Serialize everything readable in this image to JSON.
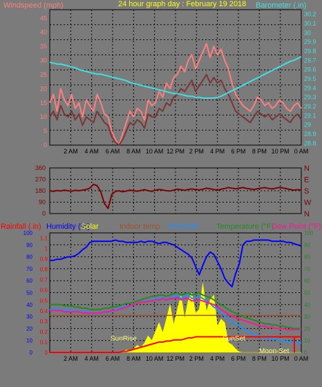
{
  "colors": {
    "bg": "#7b7b7b",
    "grid": "#000000",
    "wind_gust": "#ff7f7f",
    "wind_avg": "#7a3535",
    "barometer": "#40e0e0",
    "wind_dir": "#800000",
    "rain": "#ff0000",
    "humidity": "#0000ff",
    "solar": "#ffff00",
    "indoor": "#a0522d",
    "windchill": "#1e90ff",
    "temperature": "#228b22",
    "dewpoint": "#ff1493",
    "sun_label": "#ffff80"
  },
  "chart_data": [
    {
      "type": "line",
      "title": "24 hour graph day : February 19 2018",
      "ylabel_left": "Windspeed (mph)",
      "ylabel_right": "Barometer (.in)",
      "x_ticks": [
        "2 AM",
        "4 AM",
        "6 AM",
        "8 AM",
        "10 AM",
        "12 PM",
        "2 PM",
        "4 PM",
        "6 PM",
        "8 PM",
        "10 PM",
        "0 AM"
      ],
      "y_left_ticks": [
        "0",
        "5",
        "10",
        "15",
        "20",
        "25",
        "30",
        "35",
        "40",
        "45"
      ],
      "y_right_ticks": [
        "28.8",
        "28.9",
        "29",
        "29.1",
        "29.2",
        "29.3",
        "29.4",
        "29.5",
        "29.6",
        "29.7",
        "29.8",
        "29.9",
        "30",
        "30.1",
        "30.2"
      ],
      "ylim_left": [
        0,
        48
      ],
      "ylim_right": [
        28.78,
        30.25
      ],
      "series": [
        {
          "key": "gust",
          "values": [
            15,
            18,
            12,
            20,
            16,
            14,
            18,
            13,
            15,
            10,
            16,
            14,
            12,
            18,
            15,
            11,
            10,
            5,
            2,
            0,
            4,
            8,
            12,
            10,
            13,
            12,
            9,
            16,
            14,
            15,
            19,
            17,
            22,
            20,
            24,
            25,
            28,
            26,
            30,
            32,
            27,
            30,
            33,
            36,
            31,
            35,
            32,
            34,
            30,
            27,
            22,
            18,
            16,
            14,
            13,
            12,
            14,
            17,
            16,
            14,
            15,
            13,
            14,
            16,
            15,
            13,
            12,
            14,
            15,
            13
          ]
        },
        {
          "key": "avg",
          "values": [
            10,
            12,
            9,
            14,
            11,
            10,
            12,
            9,
            11,
            7,
            10,
            9,
            8,
            12,
            10,
            8,
            7,
            3,
            1,
            0,
            2,
            5,
            8,
            7,
            9,
            8,
            6,
            11,
            10,
            10,
            13,
            12,
            15,
            14,
            17,
            18,
            20,
            19,
            21,
            23,
            19,
            21,
            23,
            25,
            22,
            24,
            22,
            23,
            20,
            18,
            15,
            12,
            11,
            10,
            9,
            8,
            10,
            12,
            11,
            10,
            11,
            9,
            10,
            11,
            10,
            9,
            8,
            10,
            11,
            9
          ]
        },
        {
          "key": "barometer",
          "values": [
            29.68,
            29.67,
            29.66,
            29.66,
            29.65,
            29.64,
            29.63,
            29.62,
            29.6,
            29.59,
            29.58,
            29.57,
            29.56,
            29.55,
            29.55,
            29.54,
            29.53,
            29.52,
            29.51,
            29.5,
            29.49,
            29.48,
            29.46,
            29.45,
            29.44,
            29.43,
            29.42,
            29.41,
            29.4,
            29.39,
            29.38,
            29.37,
            29.36,
            29.35,
            29.34,
            29.34,
            29.33,
            29.32,
            29.31,
            29.31,
            29.3,
            29.3,
            29.29,
            29.29,
            29.29,
            29.29,
            29.3,
            29.31,
            29.33,
            29.35,
            29.37,
            29.39,
            29.41,
            29.43,
            29.45,
            29.47,
            29.49,
            29.51,
            29.53,
            29.55,
            29.57,
            29.59,
            29.61,
            29.63,
            29.65,
            29.67,
            29.69,
            29.7,
            29.72,
            29.74
          ]
        }
      ]
    },
    {
      "type": "line",
      "x_ticks": [
        "2 AM",
        "4 AM",
        "6 AM",
        "8 AM",
        "10 AM",
        "12 PM",
        "2 PM",
        "4 PM",
        "6 PM",
        "8 PM",
        "10 PM",
        "0 AM"
      ],
      "y_ticks": [
        "0",
        "90",
        "180",
        "270",
        "360"
      ],
      "y_right_labels": [
        "N",
        "W",
        "S",
        "E",
        "N"
      ],
      "ylim": [
        0,
        360
      ],
      "series": [
        {
          "key": "direction",
          "values": [
            180,
            175,
            182,
            178,
            185,
            180,
            176,
            183,
            180,
            185,
            190,
            200,
            230,
            220,
            170,
            80,
            40,
            150,
            175,
            180,
            172,
            178,
            185,
            180,
            176,
            182,
            188,
            180,
            175,
            185,
            190,
            186,
            180,
            178,
            185,
            192,
            188,
            184,
            190,
            195,
            190,
            186,
            192,
            200,
            196,
            190,
            185,
            192,
            198,
            205,
            200,
            196,
            200,
            205,
            198,
            194,
            190,
            196,
            200,
            205,
            198,
            194,
            200,
            206,
            202,
            196,
            190,
            185,
            188,
            186
          ]
        }
      ]
    },
    {
      "type": "line",
      "legend": [
        "Rainfall (.in)",
        "Humidity (%)",
        "Solar",
        "Indoor temp",
        "Windchill",
        "Temperature (°F)",
        "Dew Point (°F)"
      ],
      "x_ticks": [
        "2 AM",
        "4 AM",
        "6 AM",
        "8 AM",
        "10 AM",
        "12 PM",
        "2 PM",
        "4 PM",
        "6 PM",
        "8 PM",
        "10 PM",
        "0 AM"
      ],
      "y_left_ticks": [
        "0",
        "10",
        "20",
        "30",
        "40",
        "50",
        "60",
        "70",
        "80",
        "90",
        "100"
      ],
      "y_mid_ticks": [
        "0",
        "0.1",
        "0.2",
        "0.3",
        "0.4",
        "0.5",
        "0.6",
        "0.7",
        "0.8",
        "0.9",
        "1",
        "1.1"
      ],
      "y_right_ticks": [
        "0",
        "10",
        "20",
        "30",
        "40",
        "50",
        "60",
        "70",
        "80",
        "90",
        "100"
      ],
      "ylim": [
        0,
        100
      ],
      "annotations": [
        "SunRise",
        "SunSet",
        "Moon-Set"
      ],
      "series": [
        {
          "key": "humidity",
          "values": [
            77,
            77,
            78,
            78,
            79,
            80,
            80,
            81,
            83,
            86,
            88,
            92,
            93,
            93,
            93,
            93,
            93,
            93,
            94,
            93,
            93,
            92,
            92,
            92,
            92,
            93,
            92,
            93,
            93,
            92,
            91,
            92,
            92,
            91,
            90,
            88,
            86,
            84,
            82,
            79,
            72,
            65,
            73,
            80,
            84,
            82,
            76,
            70,
            62,
            58,
            55,
            66,
            74,
            90,
            93,
            93,
            94,
            94,
            94,
            94,
            94,
            93,
            93,
            93,
            93,
            92,
            92,
            91,
            90,
            89
          ]
        },
        {
          "key": "temperature",
          "values": [
            40,
            40,
            40,
            40,
            39,
            39,
            39,
            38,
            38,
            37,
            37,
            36,
            36,
            36,
            36,
            37,
            37,
            38,
            38,
            39,
            40,
            41,
            41,
            42,
            43,
            44,
            45,
            46,
            47,
            47,
            48,
            48,
            47,
            48,
            49,
            50,
            48,
            49,
            50,
            48,
            49,
            50,
            48,
            47,
            46,
            44,
            42,
            40,
            38,
            36,
            34,
            33,
            31,
            30,
            29,
            28,
            27,
            26,
            25,
            24,
            24,
            23,
            23,
            22,
            22,
            21,
            21,
            20,
            20,
            20
          ]
        },
        {
          "key": "dewpoint",
          "values": [
            35,
            35,
            35,
            35,
            34,
            34,
            34,
            34,
            34,
            33,
            33,
            33,
            33,
            33,
            33,
            34,
            34,
            35,
            35,
            36,
            37,
            38,
            39,
            40,
            41,
            42,
            42,
            43,
            43,
            44,
            44,
            45,
            44,
            45,
            45,
            46,
            44,
            45,
            45,
            43,
            44,
            44,
            43,
            42,
            41,
            40,
            38,
            36,
            34,
            32,
            30,
            29,
            28,
            27,
            26,
            25,
            24,
            23,
            22,
            22,
            21,
            21,
            20,
            20,
            20,
            19,
            19,
            19,
            19,
            19
          ]
        },
        {
          "key": "windchill",
          "values": [
            36,
            36,
            37,
            35,
            36,
            35,
            36,
            34,
            35,
            33,
            35,
            33,
            32,
            33,
            32,
            34,
            33,
            35,
            36,
            37,
            38,
            39,
            38,
            40,
            41,
            42,
            43,
            43,
            44,
            45,
            45,
            46,
            44,
            46,
            47,
            48,
            45,
            47,
            48,
            45,
            46,
            47,
            45,
            43,
            41,
            38,
            36,
            33,
            31,
            28,
            25,
            24,
            22,
            20,
            18,
            16,
            15,
            14,
            13,
            12,
            12,
            11,
            11,
            10,
            10,
            9,
            9,
            9,
            8,
            8
          ]
        },
        {
          "key": "indoor",
          "values": [
            31,
            31,
            31,
            31,
            31,
            31,
            31,
            31,
            31,
            31,
            31,
            31,
            31,
            31,
            31,
            31,
            31,
            31,
            31,
            31,
            31,
            31,
            31,
            31,
            31,
            31,
            31,
            31,
            31,
            31,
            31,
            31,
            31,
            31,
            31,
            31,
            31,
            31,
            31,
            31,
            31,
            31,
            31,
            31,
            31,
            31,
            31,
            31,
            31,
            31,
            31,
            31,
            31,
            31,
            31,
            31,
            31,
            31,
            31,
            31,
            31,
            31,
            31,
            31,
            31,
            31,
            31,
            31,
            31,
            31
          ]
        },
        {
          "key": "solar",
          "values": [
            0,
            0,
            0,
            0,
            0,
            0,
            0,
            0,
            0,
            0,
            0,
            0,
            0,
            0,
            0,
            0,
            0,
            0,
            0,
            0,
            1,
            2,
            3,
            4,
            6,
            8,
            10,
            14,
            18,
            22,
            25,
            30,
            35,
            40,
            42,
            45,
            48,
            52,
            55,
            50,
            60,
            45,
            58,
            62,
            55,
            48,
            40,
            35,
            25,
            15,
            8,
            3,
            1,
            0,
            0,
            0,
            0,
            0,
            0,
            0,
            0,
            0,
            0,
            0,
            0,
            0,
            0,
            0,
            0,
            0
          ]
        },
        {
          "key": "rain",
          "values": [
            0,
            0,
            0,
            0,
            0,
            0,
            0,
            0,
            0,
            0,
            0,
            0,
            0,
            0,
            0,
            0,
            0,
            0,
            0,
            0,
            0.01,
            0.01,
            0.02,
            0.03,
            0.04,
            0.05,
            0.06,
            0.07,
            0.08,
            0.09,
            0.1,
            0.1,
            0.11,
            0.11,
            0.12,
            0.12,
            0.12,
            0.13,
            0.14,
            0.14,
            0.15,
            0.15,
            0.15,
            0.15,
            0.15,
            0.15,
            0.15,
            0.15,
            0.15,
            0.15,
            0.15,
            0.15,
            0.15,
            0.15,
            0.15,
            0.15,
            0.15,
            0.15,
            0.15,
            0.15,
            0.15,
            0.15,
            0.15,
            0.15,
            0.15,
            0.15,
            0.15,
            0.15,
            0.15,
            0.15
          ]
        }
      ]
    }
  ]
}
